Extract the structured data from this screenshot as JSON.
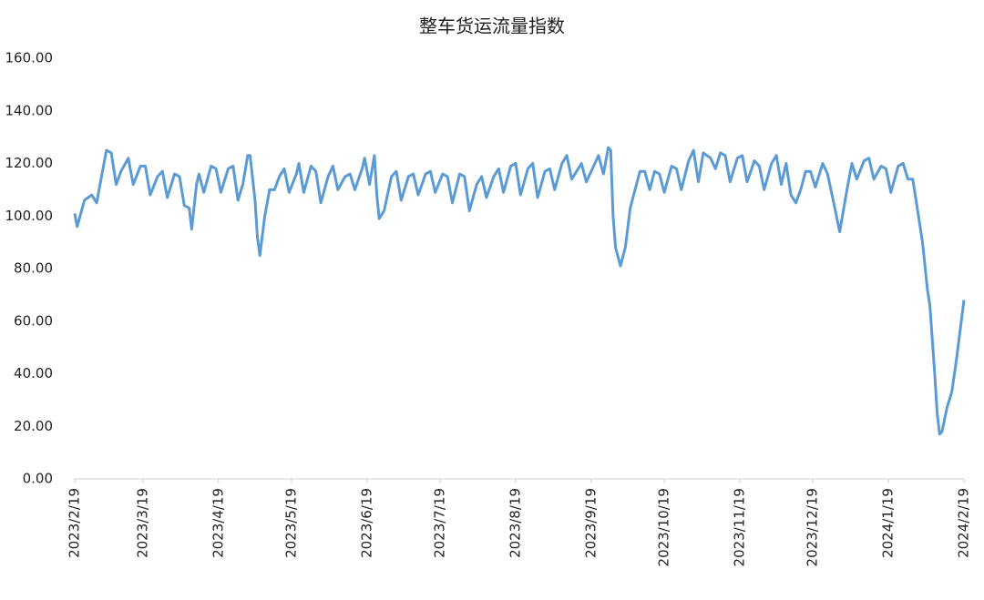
{
  "chart_data": {
    "type": "line",
    "title": "整车货运流量指数",
    "x": [
      "2023/2/19",
      "2023/2/20",
      "2023/2/23",
      "2023/2/26",
      "2023/2/28",
      "2023/3/2",
      "2023/3/4",
      "2023/3/6",
      "2023/3/8",
      "2023/3/10",
      "2023/3/13",
      "2023/3/15",
      "2023/3/18",
      "2023/3/20",
      "2023/3/22",
      "2023/3/25",
      "2023/3/27",
      "2023/3/29",
      "2023/4/1",
      "2023/4/3",
      "2023/4/5",
      "2023/4/7",
      "2023/4/8",
      "2023/4/10",
      "2023/4/11",
      "2023/4/13",
      "2023/4/16",
      "2023/4/18",
      "2023/4/20",
      "2023/4/23",
      "2023/4/25",
      "2023/4/27",
      "2023/4/29",
      "2023/5/1",
      "2023/5/2",
      "2023/5/4",
      "2023/5/5",
      "2023/5/6",
      "2023/5/8",
      "2023/5/10",
      "2023/5/12",
      "2023/5/14",
      "2023/5/16",
      "2023/5/18",
      "2023/5/21",
      "2023/5/22",
      "2023/5/24",
      "2023/5/27",
      "2023/5/29",
      "2023/5/31",
      "2023/6/3",
      "2023/6/5",
      "2023/6/7",
      "2023/6/10",
      "2023/6/12",
      "2023/6/14",
      "2023/6/17",
      "2023/6/18",
      "2023/6/20",
      "2023/6/22",
      "2023/6/23",
      "2023/6/24",
      "2023/6/26",
      "2023/6/29",
      "2023/7/1",
      "2023/7/3",
      "2023/7/6",
      "2023/7/8",
      "2023/7/10",
      "2023/7/13",
      "2023/7/15",
      "2023/7/17",
      "2023/7/20",
      "2023/7/22",
      "2023/7/24",
      "2023/7/27",
      "2023/7/29",
      "2023/7/31",
      "2023/8/3",
      "2023/8/5",
      "2023/8/7",
      "2023/8/10",
      "2023/8/12",
      "2023/8/14",
      "2023/8/17",
      "2023/8/19",
      "2023/8/21",
      "2023/8/24",
      "2023/8/26",
      "2023/8/28",
      "2023/8/31",
      "2023/9/2",
      "2023/9/4",
      "2023/9/7",
      "2023/9/9",
      "2023/9/11",
      "2023/9/13",
      "2023/9/15",
      "2023/9/17",
      "2023/9/20",
      "2023/9/22",
      "2023/9/24",
      "2023/9/26",
      "2023/9/27",
      "2023/9/28",
      "2023/9/29",
      "2023/10/1",
      "2023/10/3",
      "2023/10/5",
      "2023/10/7",
      "2023/10/9",
      "2023/10/11",
      "2023/10/13",
      "2023/10/15",
      "2023/10/17",
      "2023/10/19",
      "2023/10/22",
      "2023/10/24",
      "2023/10/26",
      "2023/10/29",
      "2023/10/31",
      "2023/11/2",
      "2023/11/4",
      "2023/11/7",
      "2023/11/9",
      "2023/11/11",
      "2023/11/13",
      "2023/11/15",
      "2023/11/18",
      "2023/11/20",
      "2023/11/22",
      "2023/11/25",
      "2023/11/27",
      "2023/11/29",
      "2023/12/2",
      "2023/12/4",
      "2023/12/6",
      "2023/12/8",
      "2023/12/10",
      "2023/12/12",
      "2023/12/14",
      "2023/12/16",
      "2023/12/18",
      "2023/12/20",
      "2023/12/23",
      "2023/12/25",
      "2023/12/28",
      "2023/12/30",
      "2024/1/2",
      "2024/1/4",
      "2024/1/6",
      "2024/1/9",
      "2024/1/11",
      "2024/1/13",
      "2024/1/16",
      "2024/1/18",
      "2024/1/20",
      "2024/1/23",
      "2024/1/25",
      "2024/1/27",
      "2024/1/29",
      "2024/1/31",
      "2024/2/2",
      "2024/2/4",
      "2024/2/5",
      "2024/2/7",
      "2024/2/8",
      "2024/2/9",
      "2024/2/10",
      "2024/2/12",
      "2024/2/14",
      "2024/2/16",
      "2024/2/19"
    ],
    "series": [
      {
        "name": "整车货运流量指数",
        "color": "#5b9bd5",
        "values": [
          101,
          96,
          106,
          108,
          105,
          115,
          125,
          124,
          112,
          117,
          122,
          112,
          119,
          119,
          108,
          115,
          117,
          107,
          116,
          115,
          104,
          103,
          95,
          112,
          116,
          109,
          119,
          118,
          109,
          118,
          119,
          106,
          112,
          123,
          123,
          106,
          92,
          85,
          100,
          110,
          110,
          115,
          118,
          109,
          116,
          120,
          109,
          119,
          117,
          105,
          115,
          119,
          110,
          115,
          116,
          110,
          118,
          122,
          112,
          123,
          108,
          99,
          102,
          115,
          117,
          106,
          115,
          116,
          108,
          116,
          117,
          109,
          116,
          115,
          105,
          116,
          115,
          102,
          112,
          115,
          107,
          115,
          118,
          109,
          119,
          120,
          108,
          118,
          120,
          107,
          117,
          118,
          110,
          120,
          123,
          114,
          117,
          120,
          113,
          119,
          123,
          116,
          126,
          125,
          100,
          88,
          81,
          88,
          103,
          110,
          117,
          117,
          110,
          117,
          116,
          109,
          119,
          118,
          110,
          121,
          125,
          113,
          124,
          122,
          118,
          124,
          123,
          113,
          122,
          123,
          113,
          121,
          119,
          110,
          120,
          123,
          112,
          120,
          108,
          105,
          110,
          117,
          117,
          111,
          120,
          116,
          103,
          94,
          110,
          120,
          114,
          121,
          122,
          114,
          119,
          118,
          109,
          119,
          120,
          114,
          114,
          102,
          90,
          72,
          66,
          40,
          25,
          17,
          18,
          27,
          33,
          46,
          68
        ]
      }
    ],
    "xticks": [
      "2023/2/19",
      "2023/3/19",
      "2023/4/19",
      "2023/5/19",
      "2023/6/19",
      "2023/7/19",
      "2023/8/19",
      "2023/9/19",
      "2023/10/19",
      "2023/11/19",
      "2023/12/19",
      "2024/1/19",
      "2024/2/19"
    ],
    "ylim": [
      0,
      160
    ],
    "yticks": [
      {
        "value": 0,
        "label": "0.00"
      },
      {
        "value": 20,
        "label": "20.00"
      },
      {
        "value": 40,
        "label": "40.00"
      },
      {
        "value": 60,
        "label": "60.00"
      },
      {
        "value": 80,
        "label": "80.00"
      },
      {
        "value": 100,
        "label": "100.00"
      },
      {
        "value": 120,
        "label": "120.00"
      },
      {
        "value": 140,
        "label": "140.00"
      },
      {
        "value": 160,
        "label": "160.00"
      }
    ]
  }
}
